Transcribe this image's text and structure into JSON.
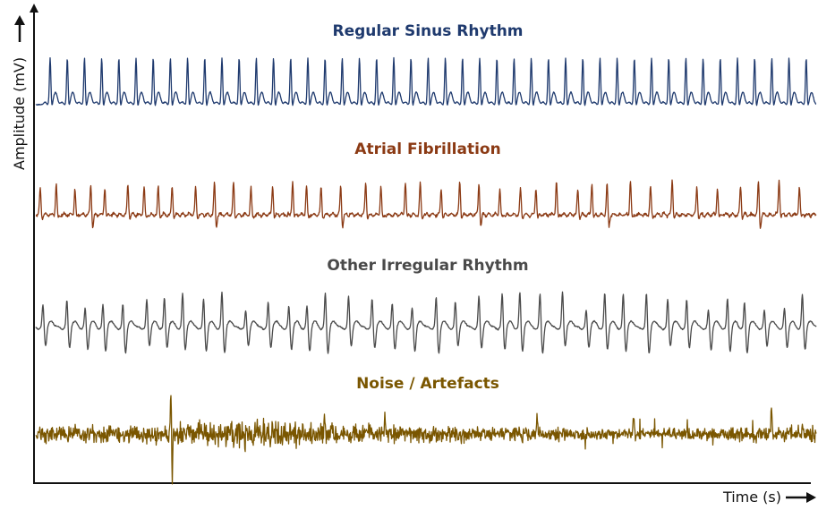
{
  "axes": {
    "y_label": "Amplitude (mV)",
    "x_label": "Time (s)"
  },
  "traces": [
    {
      "label": "Regular Sinus Rhythm",
      "color": "#1f3a6e"
    },
    {
      "label": "Atrial Fibrillation",
      "color": "#8b3a14"
    },
    {
      "label": "Other Irregular Rhythm",
      "color": "#4a4a4a"
    },
    {
      "label": "Noise / Artefacts",
      "color": "#7a5600"
    }
  ]
}
